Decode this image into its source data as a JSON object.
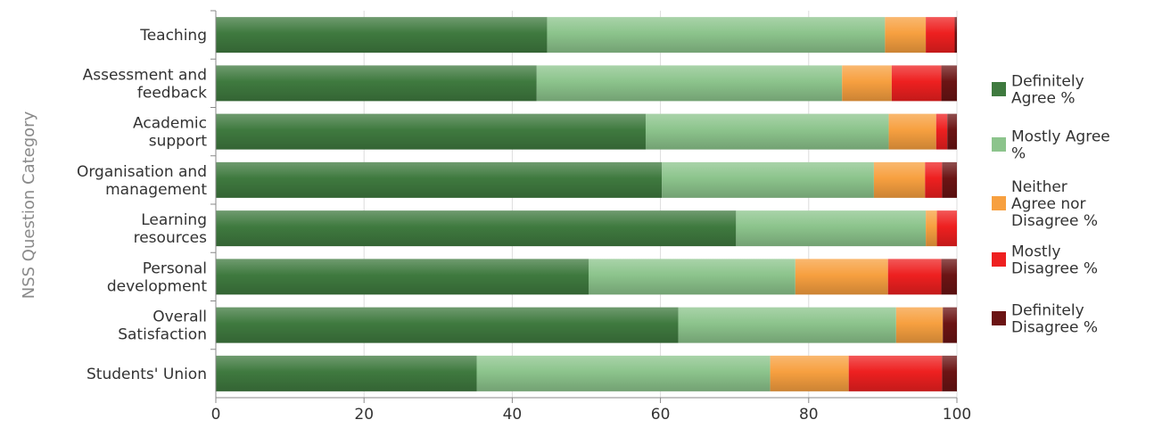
{
  "chart_data": {
    "type": "bar",
    "orientation": "horizontal",
    "stacked": true,
    "title": "",
    "xlabel": "",
    "ylabel": "NSS Question Category",
    "xlim": [
      0,
      100
    ],
    "xticks": [
      "0",
      "20",
      "40",
      "60",
      "80",
      "100"
    ],
    "categories": [
      [
        "Teaching"
      ],
      [
        "Assessment and",
        "feedback"
      ],
      [
        "Academic",
        "support"
      ],
      [
        "Organisation and",
        "management"
      ],
      [
        "Learning",
        "resources"
      ],
      [
        "Personal",
        "development"
      ],
      [
        "Overall",
        "Satisfaction"
      ],
      [
        "Students' Union"
      ]
    ],
    "series": [
      {
        "name": "Definitely Agree %",
        "legend_lines": [
          "Definitely",
          "Agree %"
        ],
        "color": "#3f7a3f",
        "values": [
          44.7,
          43.3,
          58,
          60.2,
          70.2,
          50.3,
          62.4,
          35.2
        ]
      },
      {
        "name": "Mostly Agree %",
        "legend_lines": [
          "Mostly Agree",
          "%"
        ],
        "color": "#8cc48c",
        "values": [
          45.6,
          41.2,
          32.8,
          28.6,
          25.6,
          27.9,
          29.4,
          39.6
        ]
      },
      {
        "name": "Neither Agree nor Disagree %",
        "legend_lines": [
          "Neither",
          "Agree nor",
          "Disagree %"
        ],
        "color": "#f7a040",
        "values": [
          5.5,
          6.7,
          6.4,
          6.9,
          1.5,
          12.5,
          6.3,
          10.6
        ]
      },
      {
        "name": "Mostly Disagree %",
        "legend_lines": [
          "Mostly",
          "Disagree %"
        ],
        "color": "#ee2020",
        "values": [
          3.9,
          6.7,
          1.5,
          2.3,
          2.7,
          7.2,
          0,
          12.6
        ]
      },
      {
        "name": "Definitely Disagree %",
        "legend_lines": [
          "Definitely",
          "Disagree %"
        ],
        "color": "#6b1414",
        "values": [
          0.3,
          2.1,
          1.3,
          2,
          0,
          2.1,
          1.9,
          2
        ]
      }
    ],
    "grid": true,
    "legend_position": "right"
  }
}
